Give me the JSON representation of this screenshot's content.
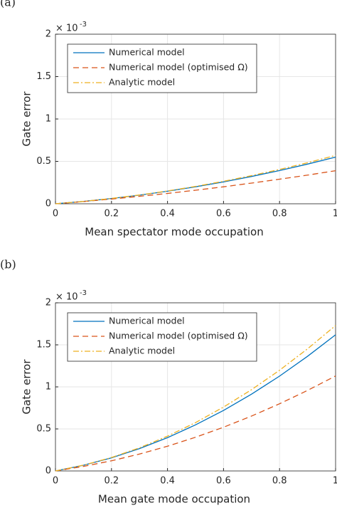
{
  "chart_data": [
    {
      "type": "line",
      "panel": "(a)",
      "xlabel": "Mean spectator mode occupation",
      "ylabel": "Gate error",
      "y_scale_base": "× 10",
      "y_scale_exponent": "-3",
      "x": [
        0,
        0.1,
        0.2,
        0.3,
        0.4,
        0.5,
        0.6,
        0.7,
        0.8,
        0.9,
        1
      ],
      "series": [
        {
          "name": "Numerical model",
          "color": "#0072bd",
          "dash": "solid",
          "values": [
            0,
            0.028,
            0.062,
            0.102,
            0.148,
            0.2,
            0.258,
            0.322,
            0.392,
            0.468,
            0.55
          ]
        },
        {
          "name": "Numerical model (optimised Ω)",
          "color": "#d95319",
          "dash": "dashed",
          "values": [
            0,
            0.026,
            0.056,
            0.088,
            0.122,
            0.16,
            0.2,
            0.244,
            0.29,
            0.338,
            0.39
          ]
        },
        {
          "name": "Analytic model",
          "color": "#edb120",
          "dash": "dashdot",
          "values": [
            0,
            0.028,
            0.063,
            0.104,
            0.151,
            0.205,
            0.265,
            0.332,
            0.405,
            0.484,
            0.57
          ]
        }
      ],
      "xlim": [
        0,
        1
      ],
      "xticks": [
        0,
        0.2,
        0.4,
        0.6,
        0.8,
        1
      ],
      "ylim": [
        0,
        2
      ],
      "yticks": [
        0,
        0.5,
        1,
        1.5,
        2
      ],
      "grid": true,
      "legend": "upper left"
    },
    {
      "type": "line",
      "panel": "(b)",
      "xlabel": "Mean gate mode occupation",
      "ylabel": "Gate error",
      "y_scale_base": "× 10",
      "y_scale_exponent": "-3",
      "x": [
        0,
        0.1,
        0.2,
        0.3,
        0.4,
        0.5,
        0.6,
        0.7,
        0.8,
        0.9,
        1
      ],
      "series": [
        {
          "name": "Numerical model",
          "color": "#0072bd",
          "dash": "solid",
          "values": [
            0,
            0.068,
            0.156,
            0.266,
            0.396,
            0.548,
            0.72,
            0.914,
            1.128,
            1.364,
            1.62
          ]
        },
        {
          "name": "Numerical model (optimised Ω)",
          "color": "#d95319",
          "dash": "dashed",
          "values": [
            0,
            0.054,
            0.121,
            0.201,
            0.294,
            0.401,
            0.52,
            0.653,
            0.799,
            0.958,
            1.13
          ]
        },
        {
          "name": "Analytic model",
          "color": "#edb120",
          "dash": "dashdot",
          "values": [
            0,
            0.069,
            0.16,
            0.275,
            0.414,
            0.575,
            0.76,
            0.967,
            1.198,
            1.453,
            1.73
          ]
        }
      ],
      "xlim": [
        0,
        1
      ],
      "xticks": [
        0,
        0.2,
        0.4,
        0.6,
        0.8,
        1
      ],
      "ylim": [
        0,
        2
      ],
      "yticks": [
        0,
        0.5,
        1,
        1.5,
        2
      ],
      "grid": true,
      "legend": "upper left"
    }
  ]
}
